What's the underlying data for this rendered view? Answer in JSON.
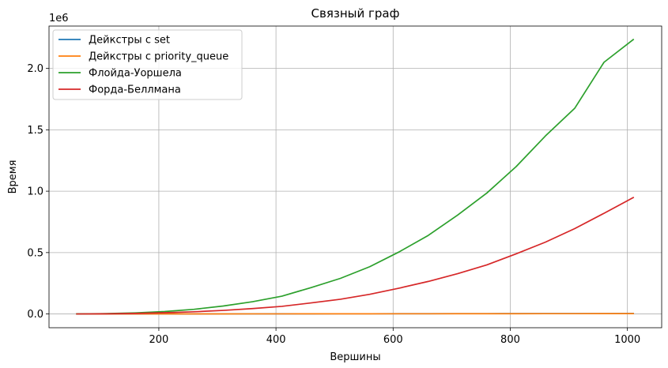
{
  "chart_data": {
    "type": "line",
    "title": "Связный граф",
    "xlabel": "Вершины",
    "ylabel": "Время",
    "y_offset_text": "1e6",
    "xlim": [
      12.5,
      1058.5
    ],
    "ylim": [
      -112000,
      2345000
    ],
    "xticks": [
      200,
      400,
      600,
      800,
      1000
    ],
    "xtick_labels": [
      "200",
      "400",
      "600",
      "800",
      "1000"
    ],
    "yticks": [
      0,
      500000,
      1000000,
      1500000,
      2000000
    ],
    "ytick_labels": [
      "0.0",
      "0.5",
      "1.0",
      "1.5",
      "2.0"
    ],
    "grid": true,
    "legend_position": "top-left",
    "x": [
      60,
      110,
      160,
      210,
      260,
      310,
      360,
      410,
      460,
      510,
      560,
      610,
      660,
      710,
      760,
      810,
      860,
      910,
      960,
      1010
    ],
    "series": [
      {
        "name": "Дейкстры с set",
        "color": "#1f77b4",
        "values": [
          50,
          150,
          300,
          500,
          700,
          900,
          1100,
          1300,
          1500,
          1700,
          1900,
          2100,
          2300,
          2500,
          2700,
          2900,
          3100,
          3300,
          3500,
          3700
        ]
      },
      {
        "name": "Дейкстры с priority_queue",
        "color": "#ff7f0e",
        "values": [
          40,
          120,
          250,
          420,
          600,
          780,
          950,
          1100,
          1250,
          1400,
          1550,
          1700,
          1850,
          2000,
          2150,
          2300,
          2450,
          2600,
          2750,
          2900
        ]
      },
      {
        "name": "Флойда-Уоршела",
        "color": "#2ca02c",
        "values": [
          500,
          3000,
          9000,
          20000,
          38000,
          65000,
          100000,
          145000,
          215000,
          290000,
          385000,
          505000,
          640000,
          805000,
          985000,
          1200000,
          1450000,
          1675000,
          2050000,
          2235000
        ]
      },
      {
        "name": "Форда-Беллмана",
        "color": "#d62728",
        "values": [
          200,
          1500,
          4500,
          10000,
          18000,
          29000,
          44000,
          62000,
          90000,
          120000,
          160000,
          210000,
          265000,
          328000,
          400000,
          490000,
          585000,
          695000,
          820000,
          948000
        ]
      }
    ]
  }
}
